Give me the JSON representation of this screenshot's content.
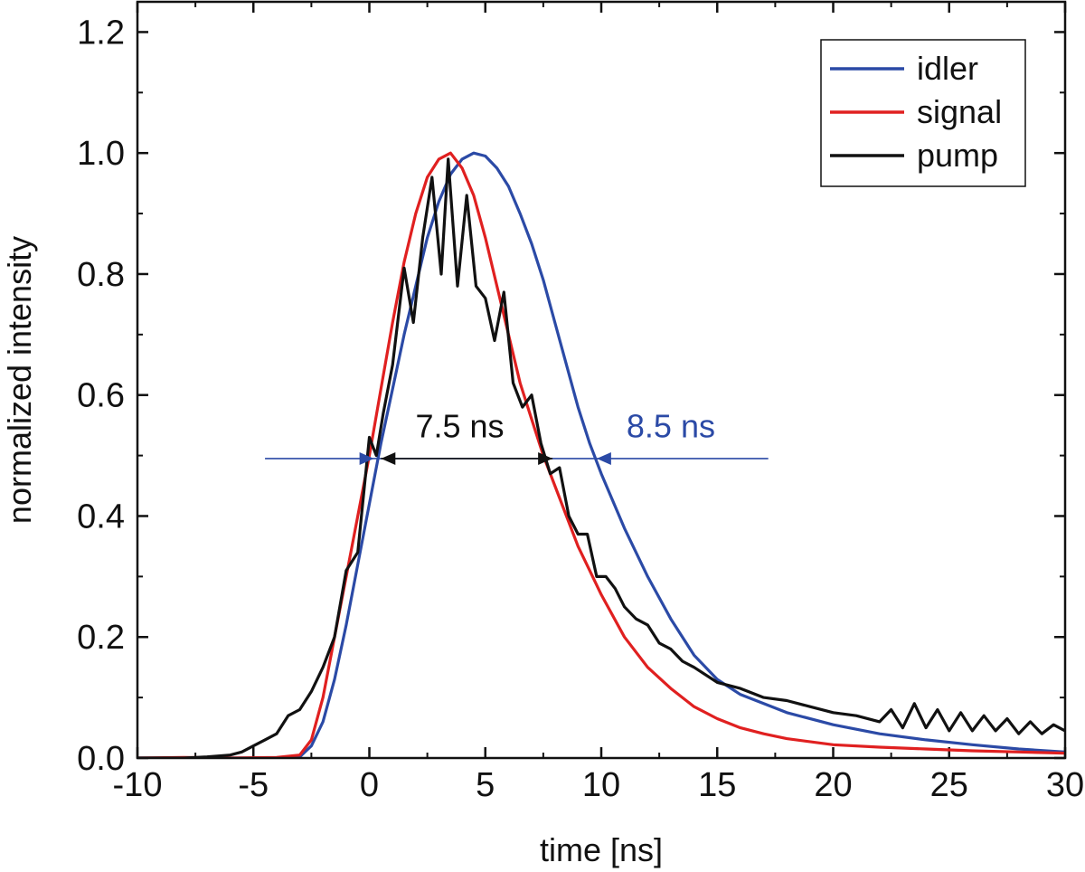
{
  "chart_data": {
    "type": "line",
    "xlabel": "time [ns]",
    "ylabel": "normalized intensity",
    "xlim": [
      -10,
      30
    ],
    "ylim": [
      0,
      1.25
    ],
    "x_ticks": [
      -10,
      -5,
      0,
      5,
      10,
      15,
      20,
      25,
      30
    ],
    "x_tick_labels": [
      "-10",
      "-5",
      "0",
      "5",
      "10",
      "15",
      "20",
      "25",
      "30"
    ],
    "y_ticks": [
      0,
      0.2,
      0.4,
      0.6,
      0.8,
      1.0,
      1.2
    ],
    "y_tick_labels": [
      "0.0",
      "0.2",
      "0.4",
      "0.6",
      "0.8",
      "1.0",
      "1.2"
    ],
    "legend_position": "top-right",
    "series": [
      {
        "name": "idler",
        "color": "#2b4aa6",
        "x": [
          -10,
          -4,
          -3.5,
          -3,
          -2.5,
          -2,
          -1.5,
          -1,
          -0.5,
          0,
          0.5,
          1,
          1.5,
          2,
          2.5,
          3,
          3.5,
          4,
          4.5,
          5,
          5.5,
          6,
          6.5,
          7,
          7.5,
          8,
          8.5,
          9,
          9.5,
          10,
          11,
          12,
          13,
          14,
          15,
          16,
          17,
          18,
          20,
          22,
          24,
          26,
          28,
          30
        ],
        "y": [
          0.0,
          0.0,
          0.0,
          0.002,
          0.02,
          0.06,
          0.13,
          0.22,
          0.32,
          0.42,
          0.52,
          0.61,
          0.7,
          0.78,
          0.86,
          0.92,
          0.965,
          0.99,
          1.0,
          0.995,
          0.975,
          0.945,
          0.9,
          0.85,
          0.79,
          0.72,
          0.65,
          0.58,
          0.52,
          0.47,
          0.38,
          0.3,
          0.23,
          0.17,
          0.13,
          0.105,
          0.09,
          0.075,
          0.055,
          0.04,
          0.03,
          0.022,
          0.015,
          0.01
        ]
      },
      {
        "name": "signal",
        "color": "#e02020",
        "x": [
          -10,
          -8,
          -6,
          -4,
          -3,
          -2.5,
          -2,
          -1.5,
          -1,
          -0.5,
          0,
          0.5,
          1,
          1.5,
          2,
          2.5,
          3,
          3.5,
          4,
          4.5,
          5,
          5.5,
          6,
          6.5,
          7,
          7.5,
          8,
          8.5,
          9,
          9.5,
          10,
          11,
          12,
          13,
          14,
          15,
          16,
          17,
          18,
          20,
          22,
          24,
          26,
          28,
          30
        ],
        "y": [
          0.0,
          0.001,
          0.0,
          0.001,
          0.005,
          0.03,
          0.1,
          0.2,
          0.3,
          0.4,
          0.5,
          0.61,
          0.72,
          0.82,
          0.9,
          0.96,
          0.99,
          1.0,
          0.975,
          0.93,
          0.86,
          0.78,
          0.7,
          0.62,
          0.56,
          0.5,
          0.45,
          0.4,
          0.35,
          0.31,
          0.27,
          0.2,
          0.15,
          0.115,
          0.085,
          0.065,
          0.05,
          0.04,
          0.032,
          0.022,
          0.018,
          0.015,
          0.012,
          0.01,
          0.008
        ]
      },
      {
        "name": "pump",
        "color": "#111111",
        "x": [
          -10,
          -8,
          -7,
          -6,
          -5.5,
          -5,
          -4.5,
          -4,
          -3.5,
          -3,
          -2.5,
          -2,
          -1.5,
          -1,
          -0.5,
          0,
          0.3,
          0.6,
          1,
          1.5,
          1.9,
          2.3,
          2.7,
          3.1,
          3.4,
          3.8,
          4.2,
          4.6,
          5.0,
          5.4,
          5.8,
          6.2,
          6.6,
          7.0,
          7.4,
          7.8,
          8.2,
          8.6,
          9.0,
          9.4,
          9.8,
          10.2,
          10.6,
          11,
          11.5,
          12,
          12.5,
          13,
          13.5,
          14,
          15,
          16,
          17,
          18,
          19,
          20,
          21,
          22,
          22.5,
          23,
          23.5,
          24,
          24.5,
          25,
          25.5,
          26,
          26.5,
          27,
          27.5,
          28,
          28.5,
          29,
          29.5,
          30
        ],
        "y": [
          0.0,
          0.0,
          0.002,
          0.005,
          0.01,
          0.02,
          0.03,
          0.04,
          0.07,
          0.08,
          0.11,
          0.15,
          0.2,
          0.31,
          0.34,
          0.53,
          0.5,
          0.57,
          0.65,
          0.81,
          0.72,
          0.86,
          0.96,
          0.8,
          0.99,
          0.78,
          0.93,
          0.78,
          0.76,
          0.69,
          0.77,
          0.62,
          0.58,
          0.6,
          0.52,
          0.47,
          0.48,
          0.4,
          0.37,
          0.37,
          0.3,
          0.3,
          0.28,
          0.25,
          0.23,
          0.22,
          0.19,
          0.18,
          0.16,
          0.15,
          0.125,
          0.115,
          0.1,
          0.095,
          0.085,
          0.075,
          0.07,
          0.06,
          0.08,
          0.05,
          0.09,
          0.05,
          0.08,
          0.045,
          0.075,
          0.045,
          0.07,
          0.045,
          0.065,
          0.04,
          0.06,
          0.04,
          0.055,
          0.045
        ]
      }
    ],
    "annotations": [
      {
        "text": "7.5 ns",
        "color": "#111111",
        "x": 3.9,
        "y": 0.53,
        "arrow_from": 0.5,
        "arrow_to": 7.9,
        "arrow_y": 0.495,
        "arrow_style": "inward-between"
      },
      {
        "text": "8.5 ns",
        "color": "#2b4aa6",
        "x": 13.0,
        "y": 0.53,
        "line_from": -4.5,
        "line_to": 17.2,
        "arrow_y": 0.495,
        "arrow_left_at": 0.2,
        "arrow_right_at": 9.8,
        "arrow_style": "outward-pointing-in"
      }
    ]
  }
}
